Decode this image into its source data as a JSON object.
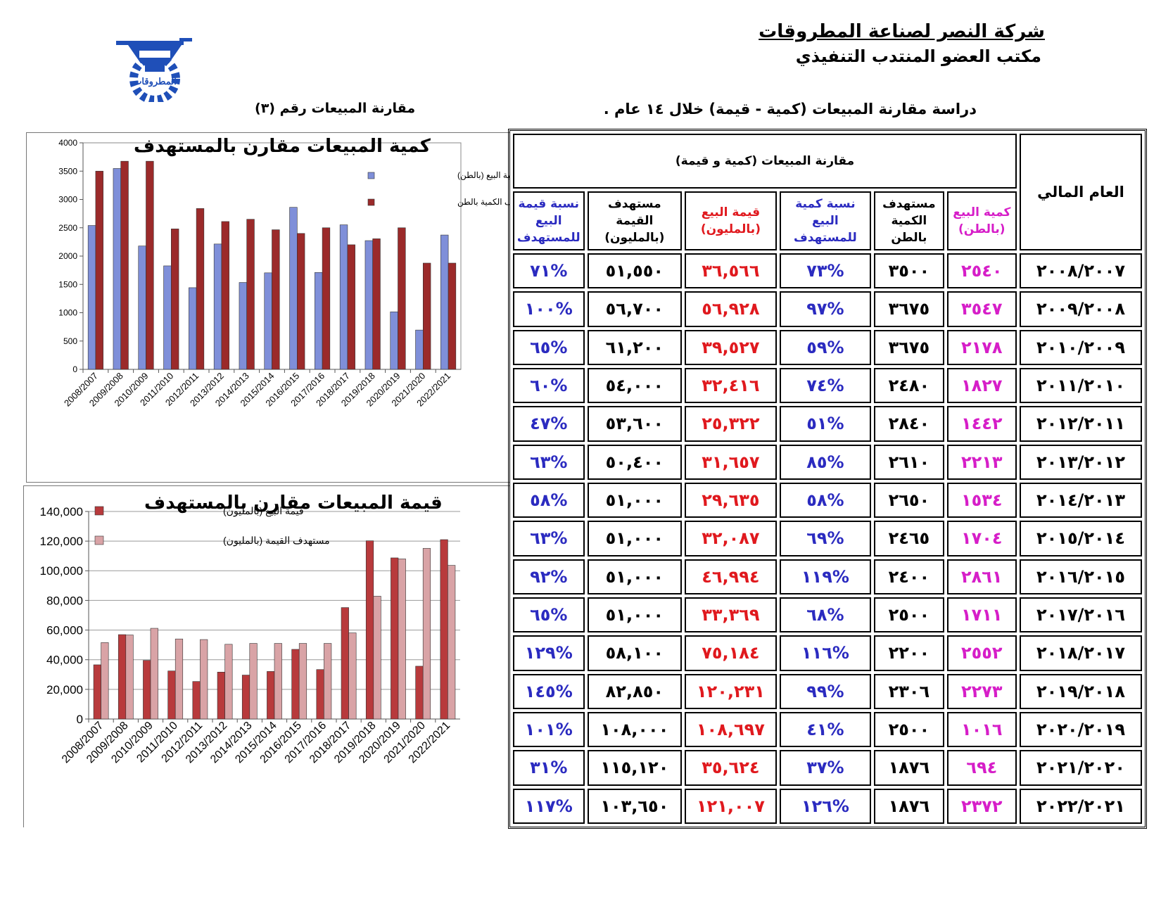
{
  "header": {
    "company": "شركة النصر لصناعة المطروقات",
    "office": "مكتب العضو المنتدب التنفيذي",
    "logo_text": "المطروقات",
    "study_title": "دراسة مقارنة المبيعات (كمية - قيمة) خلال ١٤ عام .",
    "comparison_label": "مقارنة المبيعات رقم (٣)"
  },
  "colors": {
    "blue_bar": "#7f8fd9",
    "dark_red_bar": "#9b2a2a",
    "red_bar": "#b83a3c",
    "pink_bar": "#d9a3a6",
    "qty_text": "#d61ec8",
    "value_text": "#e0191e",
    "percent_text": "#2b2bc0",
    "logo_blue": "#1f4fb8"
  },
  "table": {
    "year_header": "العام المالي",
    "group_header": "مقارنة المبيعات (كمية  و  قيمة)",
    "col_headers": {
      "qty": "كمية البيع (بالطن)",
      "target_qty": "مستهدف الكمية بالطن",
      "pct_qty": "نسبة كمية البيع للمستهدف",
      "value": "قيمة البيع (بالمليون)",
      "target_value": "مستهدف القيمة (بالمليون)",
      "pct_value": "نسبة قيمة البيع للمستهدف"
    },
    "rows": [
      {
        "year": "٢٠٠٨/٢٠٠٧",
        "qty": "٢٥٤٠",
        "target_qty": "٣٥٠٠",
        "pct_qty": "%٧٣",
        "value": "٣٦,٥٦٦",
        "target_value": "٥١,٥٥٠",
        "pct_value": "%٧١"
      },
      {
        "year": "٢٠٠٩/٢٠٠٨",
        "qty": "٣٥٤٧",
        "target_qty": "٣٦٧٥",
        "pct_qty": "%٩٧",
        "value": "٥٦,٩٢٨",
        "target_value": "٥٦,٧٠٠",
        "pct_value": "%١٠٠"
      },
      {
        "year": "٢٠١٠/٢٠٠٩",
        "qty": "٢١٧٨",
        "target_qty": "٣٦٧٥",
        "pct_qty": "%٥٩",
        "value": "٣٩,٥٢٧",
        "target_value": "٦١,٢٠٠",
        "pct_value": "%٦٥"
      },
      {
        "year": "٢٠١١/٢٠١٠",
        "qty": "١٨٢٧",
        "target_qty": "٢٤٨٠",
        "pct_qty": "%٧٤",
        "value": "٣٢,٤١٦",
        "target_value": "٥٤,٠٠٠",
        "pct_value": "%٦٠"
      },
      {
        "year": "٢٠١٢/٢٠١١",
        "qty": "١٤٤٢",
        "target_qty": "٢٨٤٠",
        "pct_qty": "%٥١",
        "value": "٢٥,٣٢٢",
        "target_value": "٥٣,٦٠٠",
        "pct_value": "%٤٧"
      },
      {
        "year": "٢٠١٣/٢٠١٢",
        "qty": "٢٢١٣",
        "target_qty": "٢٦١٠",
        "pct_qty": "%٨٥",
        "value": "٣١,٦٥٧",
        "target_value": "٥٠,٤٠٠",
        "pct_value": "%٦٣"
      },
      {
        "year": "٢٠١٤/٢٠١٣",
        "qty": "١٥٣٤",
        "target_qty": "٢٦٥٠",
        "pct_qty": "%٥٨",
        "value": "٢٩,٦٣٥",
        "target_value": "٥١,٠٠٠",
        "pct_value": "%٥٨"
      },
      {
        "year": "٢٠١٥/٢٠١٤",
        "qty": "١٧٠٤",
        "target_qty": "٢٤٦٥",
        "pct_qty": "%٦٩",
        "value": "٣٢,٠٨٧",
        "target_value": "٥١,٠٠٠",
        "pct_value": "%٦٣"
      },
      {
        "year": "٢٠١٦/٢٠١٥",
        "qty": "٢٨٦١",
        "target_qty": "٢٤٠٠",
        "pct_qty": "%١١٩",
        "value": "٤٦,٩٩٤",
        "target_value": "٥١,٠٠٠",
        "pct_value": "%٩٢"
      },
      {
        "year": "٢٠١٧/٢٠١٦",
        "qty": "١٧١١",
        "target_qty": "٢٥٠٠",
        "pct_qty": "%٦٨",
        "value": "٣٣,٣٦٩",
        "target_value": "٥١,٠٠٠",
        "pct_value": "%٦٥"
      },
      {
        "year": "٢٠١٨/٢٠١٧",
        "qty": "٢٥٥٢",
        "target_qty": "٢٢٠٠",
        "pct_qty": "%١١٦",
        "value": "٧٥,١٨٤",
        "target_value": "٥٨,١٠٠",
        "pct_value": "%١٢٩"
      },
      {
        "year": "٢٠١٩/٢٠١٨",
        "qty": "٢٢٧٣",
        "target_qty": "٢٣٠٦",
        "pct_qty": "%٩٩",
        "value": "١٢٠,٢٣١",
        "target_value": "٨٢,٨٥٠",
        "pct_value": "%١٤٥"
      },
      {
        "year": "٢٠٢٠/٢٠١٩",
        "qty": "١٠١٦",
        "target_qty": "٢٥٠٠",
        "pct_qty": "%٤١",
        "value": "١٠٨,٦٩٧",
        "target_value": "١٠٨,٠٠٠",
        "pct_value": "%١٠١"
      },
      {
        "year": "٢٠٢١/٢٠٢٠",
        "qty": "٦٩٤",
        "target_qty": "١٨٧٦",
        "pct_qty": "%٣٧",
        "value": "٣٥,٦٢٤",
        "target_value": "١١٥,١٢٠",
        "pct_value": "%٣١"
      },
      {
        "year": "٢٠٢٢/٢٠٢١",
        "qty": "٢٣٧٢",
        "target_qty": "١٨٧٦",
        "pct_qty": "%١٢٦",
        "value": "١٢١,٠٠٧",
        "target_value": "١٠٣,٦٥٠",
        "pct_value": "%١١٧"
      }
    ]
  },
  "chart_data": [
    {
      "type": "bar",
      "title": "كمية المبيعات مقارن بالمستهدف",
      "categories": [
        "2008/2007",
        "2009/2008",
        "2010/2009",
        "2011/2010",
        "2012/2011",
        "2013/2012",
        "2014/2013",
        "2015/2014",
        "2016/2015",
        "2017/2016",
        "2018/2017",
        "2019/2018",
        "2020/2019",
        "2021/2020",
        "2022/2021"
      ],
      "series": [
        {
          "name": "كمية البيع    (بالطن)",
          "color": "#7f8fd9",
          "values": [
            2540,
            3547,
            2178,
            1827,
            1442,
            2213,
            1534,
            1704,
            2861,
            1711,
            2552,
            2273,
            1016,
            694,
            2372
          ]
        },
        {
          "name": "مستهدف الكمية  بالطن",
          "color": "#9b2a2a",
          "values": [
            3500,
            3675,
            3675,
            2480,
            2840,
            2610,
            2650,
            2465,
            2400,
            2500,
            2200,
            2306,
            2500,
            1876,
            1876
          ]
        }
      ],
      "ylim": [
        0,
        4000
      ],
      "yticks": [
        "0",
        "500",
        "1000",
        "1500",
        "2000",
        "2500",
        "3000",
        "3500",
        "4000"
      ],
      "grid": false,
      "legend": "right"
    },
    {
      "type": "bar",
      "title": "قيمة المبيعات مقارن بالمستهدف",
      "categories": [
        "2008/2007",
        "2009/2008",
        "2010/2009",
        "2011/2010",
        "2012/2011",
        "2013/2012",
        "2014/2013",
        "2015/2014",
        "2016/2015",
        "2017/2016",
        "2018/2017",
        "2019/2018",
        "2020/2019",
        "2021/2020",
        "2022/2021"
      ],
      "series": [
        {
          "name": "قيمة البيع  (بالمليون)",
          "color": "#b83a3c",
          "values": [
            36566,
            56928,
            39527,
            32416,
            25322,
            31657,
            29635,
            32087,
            46994,
            33369,
            75184,
            120231,
            108697,
            35624,
            121007
          ]
        },
        {
          "name": "مستهدف القيمة  (بالمليون)",
          "color": "#d9a3a6",
          "values": [
            51550,
            56700,
            61200,
            54000,
            53600,
            50400,
            51000,
            51000,
            51000,
            51000,
            58100,
            82850,
            108000,
            115120,
            103650
          ]
        }
      ],
      "ylim": [
        0,
        140000
      ],
      "yticks": [
        "0",
        "20,000",
        "40,000",
        "60,000",
        "80,000",
        "100,000",
        "120,000",
        "140,000"
      ],
      "grid": true,
      "legend": "top-left"
    }
  ]
}
